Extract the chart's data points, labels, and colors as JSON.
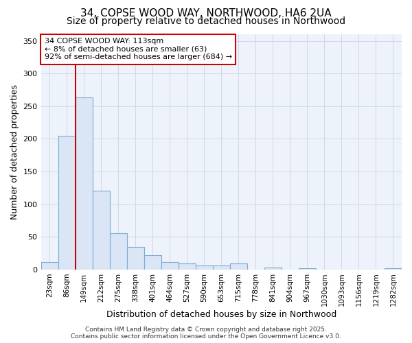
{
  "title_line1": "34, COPSE WOOD WAY, NORTHWOOD, HA6 2UA",
  "title_line2": "Size of property relative to detached houses in Northwood",
  "xlabel": "Distribution of detached houses by size in Northwood",
  "ylabel": "Number of detached properties",
  "categories": [
    "23sqm",
    "86sqm",
    "149sqm",
    "212sqm",
    "275sqm",
    "338sqm",
    "401sqm",
    "464sqm",
    "527sqm",
    "590sqm",
    "653sqm",
    "715sqm",
    "778sqm",
    "841sqm",
    "904sqm",
    "967sqm",
    "1030sqm",
    "1093sqm",
    "1156sqm",
    "1219sqm",
    "1282sqm"
  ],
  "values": [
    11,
    205,
    263,
    121,
    55,
    34,
    22,
    11,
    9,
    6,
    6,
    9,
    0,
    3,
    0,
    2,
    0,
    0,
    0,
    0,
    2
  ],
  "bar_color": "#dae5f5",
  "bar_edge_color": "#7aadd6",
  "grid_color": "#d0d8e8",
  "background_color": "#eef2fa",
  "annotation_text": "34 COPSE WOOD WAY: 113sqm\n← 8% of detached houses are smaller (63)\n92% of semi-detached houses are larger (684) →",
  "annotation_box_color": "#ffffff",
  "annotation_border_color": "#cc0000",
  "red_line_color": "#cc0000",
  "ylim": [
    0,
    360
  ],
  "yticks": [
    0,
    50,
    100,
    150,
    200,
    250,
    300,
    350
  ],
  "footer_line1": "Contains HM Land Registry data © Crown copyright and database right 2025.",
  "footer_line2": "Contains public sector information licensed under the Open Government Licence v3.0.",
  "title_fontsize": 11,
  "subtitle_fontsize": 10,
  "tick_fontsize": 7.5,
  "ylabel_fontsize": 9,
  "xlabel_fontsize": 9,
  "annotation_fontsize": 8,
  "footer_fontsize": 6.5
}
